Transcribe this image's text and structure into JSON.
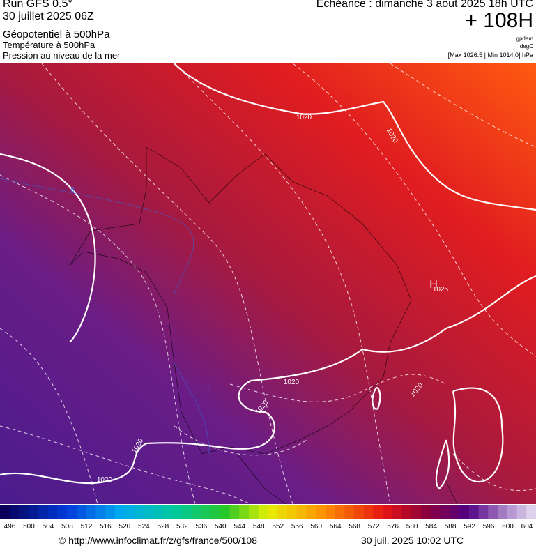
{
  "header": {
    "run": "Run GFS 0.5°",
    "date": "30 juillet 2025 06Z",
    "field1": "Géopotentiel à 500hPa",
    "field2": "Température à 500hPa",
    "field3": "Pression au niveau de la mer",
    "forecast": "Echéance : dimanche 3 aout 2025 18h UTC",
    "lead": "+ 108H",
    "unit1": "gpdam",
    "unit2": "degC",
    "range": "[Max 1026.5 | Min 1014.0] hPa"
  },
  "map": {
    "labels": [
      "1020",
      "1020",
      "1020",
      "1020",
      "1020",
      "1020",
      "1020",
      "H",
      "1025",
      "8",
      "8"
    ]
  },
  "legend": {
    "labels": [
      496,
      500,
      504,
      508,
      512,
      516,
      520,
      524,
      528,
      532,
      536,
      540,
      544,
      548,
      552,
      556,
      560,
      564,
      568,
      572,
      576,
      580,
      584,
      588,
      592,
      596,
      600,
      604
    ]
  },
  "footer": {
    "url": "© http://www.infoclimat.fr/z/gfs/france/500/108",
    "time": "30 juil. 2025 10:02 UTC"
  }
}
